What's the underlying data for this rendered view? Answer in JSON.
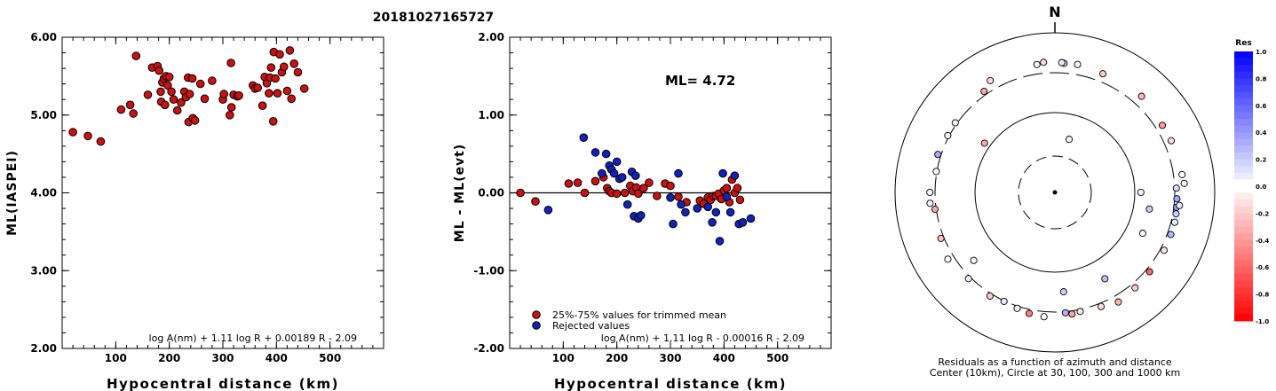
{
  "page": {
    "event_id": "20181027165727"
  },
  "chart_data": [
    {
      "type": "scatter",
      "xlabel": "Hypocentral distance (km)",
      "ylabel": "ML(IASPEI)",
      "xlim": [
        0,
        600
      ],
      "ylim": [
        2.0,
        6.0
      ],
      "xticks": [
        "100",
        "200",
        "300",
        "400",
        "500"
      ],
      "yticks": [
        "2.00",
        "3.00",
        "4.00",
        "5.00",
        "6.00"
      ],
      "formula": "log A(nm) + 1.11 log R + 0.00189 R - 2.09",
      "point_color": "#cc1111",
      "series": [
        {
          "x": [
            20,
            48,
            72,
            110,
            127,
            133,
            138,
            160,
            168,
            178,
            181,
            184,
            185,
            187,
            190,
            192,
            194,
            197,
            200,
            204,
            208,
            215,
            222,
            228,
            231,
            235,
            236,
            238,
            243,
            244,
            248,
            258,
            266,
            280,
            300,
            302,
            313,
            315,
            316,
            320,
            327,
            330,
            356,
            360,
            365,
            374,
            378,
            382,
            386,
            388,
            390,
            394,
            395,
            398,
            402,
            406,
            410,
            414,
            420,
            425,
            428,
            433,
            440,
            452
          ],
          "y": [
            4.78,
            4.73,
            4.66,
            5.07,
            5.13,
            5.02,
            5.76,
            5.26,
            5.61,
            5.63,
            5.57,
            5.3,
            5.17,
            5.42,
            5.47,
            5.13,
            5.5,
            5.38,
            5.49,
            5.3,
            5.2,
            5.06,
            5.16,
            5.3,
            5.23,
            5.48,
            4.91,
            5.27,
            5.47,
            4.96,
            4.93,
            5.4,
            5.21,
            5.44,
            5.2,
            5.27,
            5.0,
            5.67,
            5.1,
            5.26,
            5.24,
            5.25,
            5.38,
            5.34,
            5.35,
            5.12,
            5.49,
            5.41,
            5.28,
            5.48,
            5.61,
            4.92,
            5.81,
            5.47,
            5.28,
            5.78,
            5.55,
            5.62,
            5.31,
            5.83,
            5.21,
            5.66,
            5.55,
            5.34
          ]
        }
      ]
    },
    {
      "type": "scatter",
      "xlabel": "Hypocentral distance (km)",
      "ylabel": "ML - ML(evt)",
      "xlim": [
        0,
        600
      ],
      "ylim": [
        -2.0,
        2.0
      ],
      "xticks": [
        "100",
        "200",
        "300",
        "400",
        "500"
      ],
      "yticks": [
        "-2.00",
        "-1.00",
        "0.00",
        "1.00",
        "2.00"
      ],
      "annotation": "ML= 4.72",
      "formula": "log A(nm) + 1.11 log R - 0.00016 R - 2.09",
      "zero_line": true,
      "legend": {
        "placement": "bottom-left",
        "entries": [
          "25%-75% values for trimmed mean",
          "Rejected values"
        ]
      },
      "series": [
        {
          "name": "25%-75% values for trimmed mean",
          "color": "#cc1111",
          "x": [
            20,
            48,
            110,
            127,
            140,
            160,
            175,
            182,
            186,
            190,
            200,
            215,
            225,
            230,
            236,
            240,
            250,
            260,
            275,
            290,
            300,
            315,
            330,
            355,
            362,
            370,
            375,
            380,
            385,
            390,
            395,
            400,
            405,
            410,
            415,
            420,
            425,
            430
          ],
          "y": [
            0.0,
            -0.11,
            0.12,
            0.13,
            0.0,
            0.15,
            0.2,
            0.06,
            0.02,
            0.0,
            -0.01,
            0.0,
            0.09,
            0.02,
            0.07,
            -0.01,
            0.06,
            0.13,
            -0.04,
            0.12,
            0.09,
            -0.05,
            -0.12,
            -0.1,
            -0.14,
            -0.06,
            -0.09,
            -0.04,
            -0.04,
            -0.01,
            -0.08,
            0.03,
            0.06,
            -0.12,
            0.17,
            0.0,
            0.06,
            -0.09
          ]
        },
        {
          "name": "Rejected values",
          "color": "#1122bb",
          "x": [
            72,
            138,
            160,
            172,
            180,
            186,
            190,
            195,
            200,
            205,
            210,
            220,
            228,
            232,
            235,
            240,
            245,
            300,
            305,
            315,
            320,
            328,
            350,
            370,
            378,
            385,
            392,
            398,
            405,
            412,
            420,
            428,
            435,
            450
          ],
          "y": [
            -0.22,
            0.71,
            0.52,
            0.25,
            0.5,
            0.35,
            0.3,
            0.25,
            0.4,
            0.18,
            0.2,
            -0.15,
            0.27,
            -0.3,
            0.22,
            -0.33,
            -0.29,
            -0.06,
            -0.4,
            0.25,
            -0.15,
            -0.25,
            -0.2,
            -0.18,
            -0.38,
            -0.25,
            -0.62,
            0.25,
            -0.05,
            -0.25,
            0.22,
            -0.4,
            -0.38,
            -0.33
          ]
        }
      ]
    },
    {
      "type": "scatter",
      "subtype": "polar-azimuth-distance",
      "north_label": "N",
      "caption_line1": "Residuals as a function of azimuth and distance",
      "caption_line2": "Center (10km), Circle at 30, 100, 300 and 1000 km",
      "rings_km": [
        30,
        100,
        300,
        1000
      ],
      "colorbar": {
        "title": "Res",
        "range": [
          -1.0,
          1.0
        ],
        "ticks": [
          "1.0",
          "0.8",
          "0.6",
          "0.4",
          "0.2",
          "0.0",
          "-0.2",
          "-0.4",
          "-0.6",
          "-0.8",
          "-1.0"
        ],
        "positive_color": "#0000ff",
        "negative_color": "#ff0000"
      },
      "stations": {
        "azimuth_deg": [
          4,
          352,
          355,
          3,
          10,
          22,
          42,
          58,
          66,
          82,
          86,
          88,
          93,
          97,
          96,
          100,
          104,
          110,
          118,
          130,
          140,
          150,
          158,
          168,
          172,
          175,
          185,
          192,
          198,
          212,
          225,
          238,
          248,
          262,
          270,
          280,
          288,
          298,
          305,
          325,
          330,
          90,
          100,
          115,
          150,
          175,
          230,
          265,
          305,
          15,
          205
        ],
        "distance_km": [
          470,
          465,
          490,
          480,
          480,
          445,
          470,
          420,
          430,
          450,
          470,
          330,
          340,
          345,
          395,
          355,
          365,
          360,
          365,
          365,
          385,
          420,
          360,
          335,
          355,
          320,
          390,
          370,
          340,
          345,
          340,
          410,
          355,
          320,
          390,
          310,
          355,
          325,
          330,
          365,
          465,
          130,
          180,
          185,
          200,
          200,
          230,
          395,
          130,
          60,
          310
        ],
        "residual": [
          -0.25,
          0.05,
          -0.15,
          0.1,
          -0.05,
          -0.2,
          -0.3,
          -0.4,
          -0.15,
          0.0,
          0.05,
          0.15,
          0.35,
          0.4,
          0.05,
          0.2,
          0.05,
          0.3,
          -0.1,
          -0.6,
          -0.2,
          -0.3,
          -0.15,
          -0.1,
          -0.35,
          0.3,
          0.0,
          -0.5,
          -0.05,
          -0.2,
          0.05,
          0.0,
          -0.25,
          -0.35,
          0.05,
          0.0,
          0.35,
          0.05,
          -0.05,
          -0.35,
          -0.15,
          0.05,
          0.2,
          -0.05,
          0.25,
          0.2,
          -0.05,
          0.05,
          -0.35,
          -0.05,
          0.1
        ]
      }
    }
  ]
}
